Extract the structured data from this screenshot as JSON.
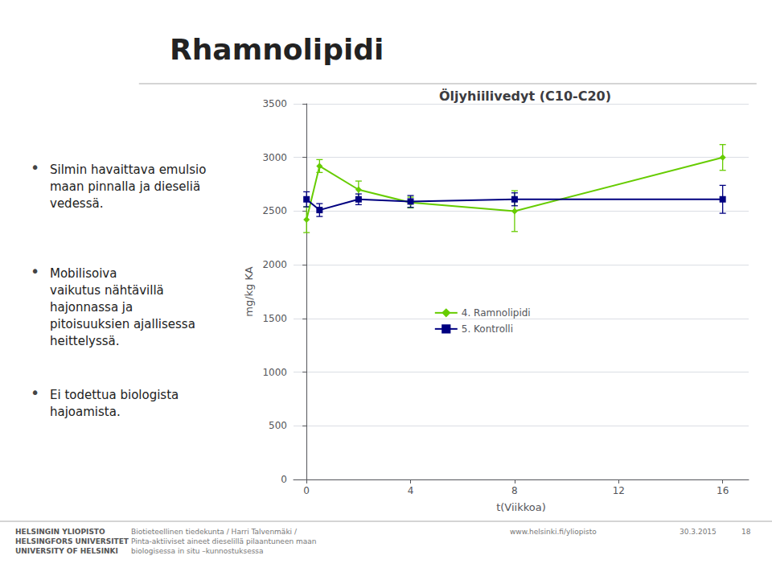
{
  "chart_data": {
    "type": "line",
    "title": "Öljyhiilivedyt (C10-C20)",
    "xlabel": "t(Viikkoa)",
    "ylabel": "mg/kg KA",
    "x": [
      0,
      0.5,
      2,
      4,
      8,
      16
    ],
    "series": [
      {
        "name": "4. Ramnolipidi",
        "color": "#66cc00",
        "marker": "diamond",
        "values": [
          2420,
          2920,
          2700,
          2580,
          2500,
          3000
        ],
        "yerr": [
          120,
          60,
          80,
          50,
          190,
          120
        ]
      },
      {
        "name": "5. Kontrolli",
        "color": "#000080",
        "marker": "square",
        "values": [
          2610,
          2510,
          2610,
          2590,
          2610,
          2610
        ],
        "yerr": [
          70,
          60,
          50,
          55,
          60,
          130
        ]
      }
    ],
    "xlim": [
      -0.5,
      17
    ],
    "ylim": [
      0,
      3500
    ],
    "xticks": [
      0,
      4,
      8,
      12,
      16
    ],
    "yticks": [
      0,
      500,
      1000,
      1500,
      2000,
      2500,
      3000,
      3500
    ],
    "grid": true,
    "legend": "center",
    "annotations": [
      "Rhamnolipidi",
      "•",
      "Silmin havaittava emulsio\nmaan pinnalla ja dieseliä\nvedessä.",
      "•",
      "Mobilisoiva\nvaikutus nähtävillä\nhajonnassa ja\npitoisuuksien ajallisessa\nheittelyssä.",
      "•",
      "Ei todettua biologista\nhajoamista.",
      "HELSINGIN YLIOPISTO\nHELSINGFORS UNIVERSITET\nUNIVERSITY OF HELSINKI",
      "Biotieteellinen tiedekunta / Harri Talvenmäki /\nPinta-aktiiviset aineet dieselillä pilaantuneen maan\nbiologisessa in situ –kunnostuksessa",
      "www.helsinki.fi/yliopisto",
      "30.3.2015",
      "18"
    ]
  }
}
